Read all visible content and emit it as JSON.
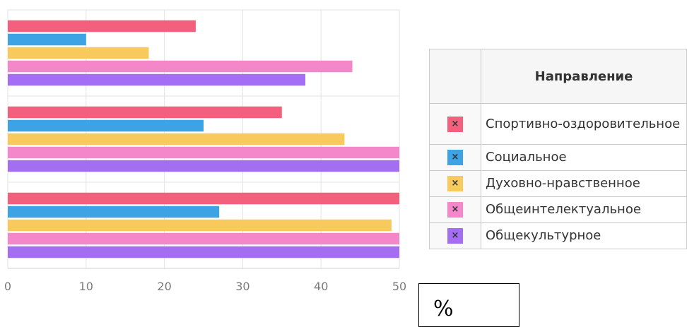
{
  "chart_data": {
    "type": "bar",
    "orientation": "horizontal",
    "groups": 3,
    "xlim": [
      0,
      50
    ],
    "x_ticks": [
      "0",
      "10",
      "20",
      "30",
      "40",
      "50"
    ],
    "unit_label": "%",
    "grid": true,
    "series": [
      {
        "name": "Спортивно-оздоровительное",
        "color": "#f2607e",
        "values": [
          24,
          35,
          50
        ]
      },
      {
        "name": "Социальное",
        "color": "#3ea3e4",
        "values": [
          10,
          25,
          27
        ]
      },
      {
        "name": "Духовно-нравственное",
        "color": "#f8c95c",
        "values": [
          18,
          43,
          49
        ]
      },
      {
        "name": "Общеинтелектуальное",
        "color": "#f487c9",
        "values": [
          44,
          50,
          50
        ]
      },
      {
        "name": "Общекультурное",
        "color": "#a46ef2",
        "values": [
          38,
          50,
          50
        ]
      }
    ]
  },
  "legend": {
    "header": "Направление",
    "rows": [
      {
        "label": "Спортивно-оздоровительное",
        "color": "#f2607e",
        "mark": "×"
      },
      {
        "label": "Социальное",
        "color": "#3ea3e4",
        "mark": "×"
      },
      {
        "label": "Духовно-нравственное",
        "color": "#f8c95c",
        "mark": "×"
      },
      {
        "label": "Общеинтелектуальное",
        "color": "#f487c9",
        "mark": "×"
      },
      {
        "label": "Общекультурное",
        "color": "#a46ef2",
        "mark": "×"
      }
    ]
  }
}
